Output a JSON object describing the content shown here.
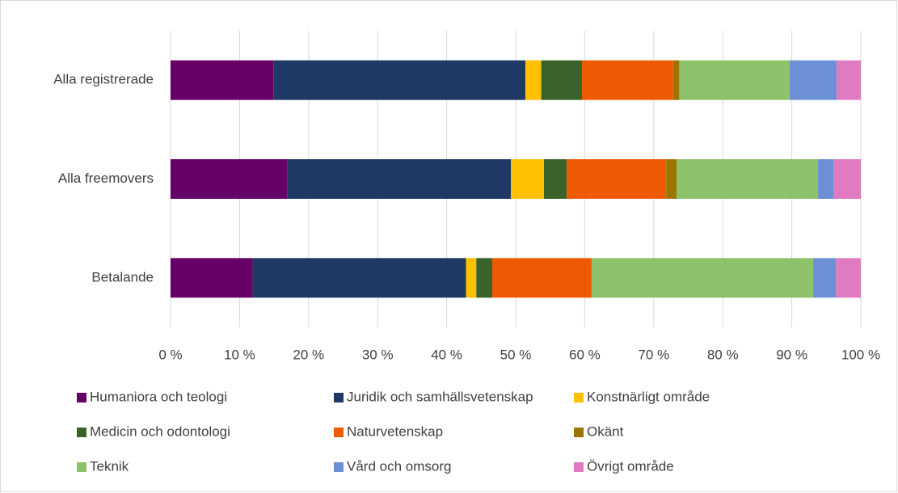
{
  "chart_data": {
    "type": "stacked_bar_horizontal",
    "categories": [
      "Alla registrerade",
      "Alla freemovers",
      "Betalande"
    ],
    "series": [
      {
        "name": "Humaniora och teologi",
        "color": "#660066",
        "values": [
          14.9,
          16.9,
          11.9
        ]
      },
      {
        "name": "Juridik och samhällsvetenskap",
        "color": "#203864",
        "values": [
          36.5,
          32.4,
          30.9
        ]
      },
      {
        "name": "Konstnärligt område",
        "color": "#ffc000",
        "values": [
          2.3,
          4.8,
          1.5
        ]
      },
      {
        "name": "Medicin och odontologi",
        "color": "#3b6229",
        "values": [
          5.9,
          3.3,
          2.3
        ]
      },
      {
        "name": "Naturvetenskap",
        "color": "#ee5a02",
        "values": [
          13.2,
          14.4,
          14.4
        ]
      },
      {
        "name": "Okänt",
        "color": "#9c7400",
        "values": [
          0.9,
          1.5,
          0
        ]
      },
      {
        "name": "Teknik",
        "color": "#8dc26a",
        "values": [
          16.0,
          20.5,
          32.1
        ]
      },
      {
        "name": "Vård och omsorg",
        "color": "#6b90d5",
        "values": [
          6.8,
          2.3,
          3.3
        ]
      },
      {
        "name": "Övrigt område",
        "color": "#e07bc1",
        "values": [
          3.5,
          3.9,
          3.6
        ]
      }
    ],
    "xlim": [
      0,
      100
    ],
    "xticks": [
      {
        "value": 0,
        "label": "0 %"
      },
      {
        "value": 10,
        "label": "10 %"
      },
      {
        "value": 20,
        "label": "20 %"
      },
      {
        "value": 30,
        "label": "30 %"
      },
      {
        "value": 40,
        "label": "40 %"
      },
      {
        "value": 50,
        "label": "50 %"
      },
      {
        "value": 60,
        "label": "60 %"
      },
      {
        "value": 70,
        "label": "70 %"
      },
      {
        "value": 80,
        "label": "80 %"
      },
      {
        "value": 90,
        "label": "90 %"
      },
      {
        "value": 100,
        "label": "100 %"
      }
    ],
    "grid": true,
    "legend": "bottom"
  }
}
